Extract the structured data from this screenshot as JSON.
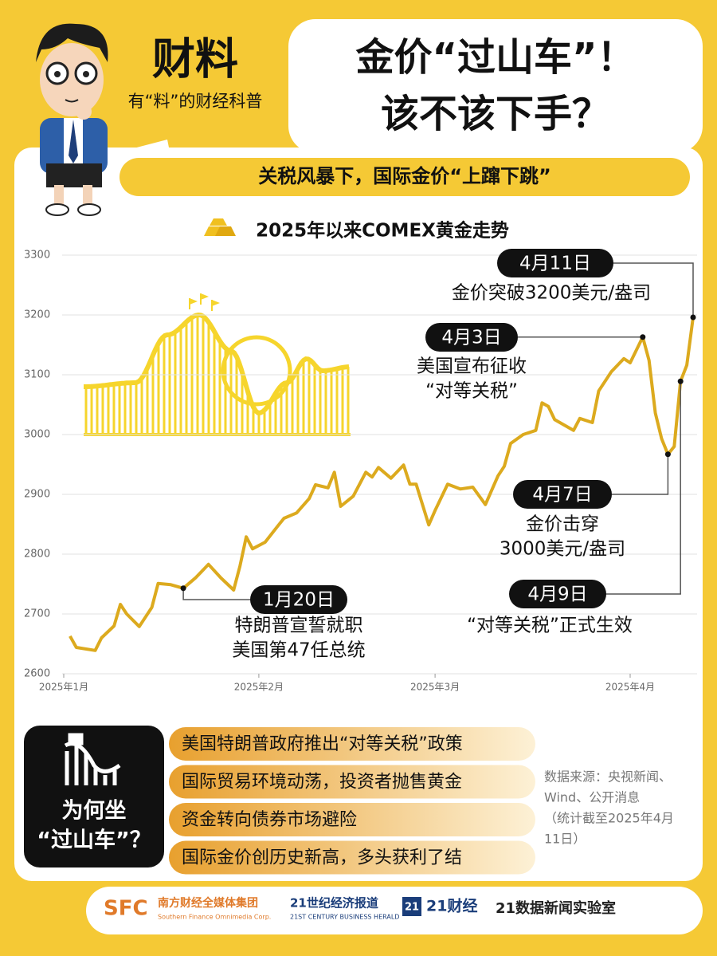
{
  "header": {
    "brand": "财料",
    "slogan": "有“料”的财经科普",
    "title": [
      "金价“过山车”！",
      "该不该下手？"
    ],
    "subtitle": "关税风暴下，国际金价“上蹿下跳”"
  },
  "chart_data": {
    "type": "line",
    "title": "2025年以来COMEX黄金走势",
    "color": "#dcaa1e",
    "x": [
      2,
      3,
      6,
      7,
      9,
      10,
      11,
      13,
      15,
      16,
      18,
      20,
      22,
      24,
      26,
      28,
      29,
      30,
      31,
      33,
      35,
      36,
      38,
      40,
      41,
      43,
      44,
      45,
      47,
      49,
      50,
      51,
      53,
      55,
      56,
      57,
      59,
      60,
      62,
      64,
      66,
      68,
      70,
      71,
      72,
      74,
      76,
      77,
      78,
      79,
      82,
      83,
      85,
      86,
      88,
      90,
      91,
      93,
      94,
      95,
      96,
      97,
      98,
      99,
      100,
      101
    ],
    "values": [
      2663,
      2644,
      2639,
      2660,
      2680,
      2716,
      2700,
      2679,
      2711,
      2751,
      2749,
      2743,
      2761,
      2783,
      2760,
      2740,
      2780,
      2829,
      2809,
      2820,
      2847,
      2860,
      2869,
      2893,
      2916,
      2911,
      2937,
      2880,
      2897,
      2937,
      2929,
      2945,
      2927,
      2949,
      2917,
      2917,
      2849,
      2873,
      2917,
      2909,
      2912,
      2883,
      2931,
      2947,
      2985,
      3000,
      3007,
      3053,
      3047,
      3025,
      3007,
      3027,
      3020,
      3073,
      3105,
      3127,
      3120,
      3163,
      3124,
      3036,
      2993,
      2967,
      2980,
      3089,
      3116,
      3196
    ],
    "xlim": [
      1,
      101
    ],
    "xticks": [
      {
        "value": 1,
        "label": "2025年1月"
      },
      {
        "value": 32,
        "label": "2025年2月"
      },
      {
        "value": 60,
        "label": "2025年3月"
      },
      {
        "value": 91,
        "label": "2025年4月"
      }
    ],
    "ylim": [
      2600,
      3300
    ],
    "yticks": [
      2600,
      2700,
      2800,
      2900,
      3000,
      3100,
      3200,
      3300
    ],
    "grid": true,
    "annotations": [
      {
        "label": "1月20日",
        "text": [
          "特朗普宣誓就职",
          "美国第47任总统"
        ]
      },
      {
        "label": "4月3日",
        "text": [
          "美国宣布征收",
          "“对等关税”"
        ]
      },
      {
        "label": "4月7日",
        "text": [
          "金价击穿",
          "3000美元/盎司"
        ]
      },
      {
        "label": "4月9日",
        "text": [
          "“对等关税”正式生效"
        ]
      },
      {
        "label": "4月11日",
        "text": [
          "金价突破3200美元/盎司"
        ]
      }
    ]
  },
  "reasons": {
    "title": [
      "为何坐",
      "“过山车”？"
    ],
    "items": [
      "美国特朗普政府推出“对等关税”政策",
      "国际贸易环境动荡，投资者抛售黄金",
      "资金转向债券市场避险",
      "国际金价创历史新高，多头获利了结"
    ]
  },
  "source": [
    "数据来源：央视新闻、",
    "Wind、公开消息",
    "（统计截至2025年4月",
    "11日）"
  ],
  "footer": {
    "sfc": "SFC",
    "sfc_name": "南方财经全媒体集团",
    "sfc_en": "Southern Finance Omnimedia Corp.",
    "herald": "21世纪经济报道",
    "herald_en": "21ST CENTURY BUSINESS HERALD",
    "cj_icon": "21",
    "cj": "21财经",
    "lab": "21数据新闻实验室"
  }
}
